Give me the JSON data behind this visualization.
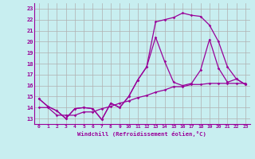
{
  "xlabel": "Windchill (Refroidissement éolien,°C)",
  "bg_color": "#c8eef0",
  "line_color": "#990099",
  "grid_color": "#b0b0b0",
  "x_ticks": [
    0,
    1,
    2,
    3,
    4,
    5,
    6,
    7,
    8,
    9,
    10,
    11,
    12,
    13,
    14,
    15,
    16,
    17,
    18,
    19,
    20,
    21,
    22,
    23
  ],
  "y_ticks": [
    13,
    14,
    15,
    16,
    17,
    18,
    19,
    20,
    21,
    22,
    23
  ],
  "ylim": [
    12.5,
    23.5
  ],
  "xlim": [
    -0.5,
    23.5
  ],
  "series": [
    [
      14.8,
      14.1,
      13.7,
      13.0,
      13.9,
      14.0,
      13.9,
      12.9,
      14.4,
      14.0,
      15.0,
      16.5,
      17.7,
      20.4,
      18.2,
      16.3,
      16.0,
      16.2,
      17.4,
      20.2,
      17.6,
      16.3,
      16.6,
      16.1
    ],
    [
      14.8,
      14.1,
      13.7,
      13.0,
      13.9,
      14.0,
      13.9,
      12.9,
      14.4,
      14.0,
      15.0,
      16.5,
      17.7,
      21.8,
      22.0,
      22.2,
      22.6,
      22.4,
      22.3,
      21.5,
      20.0,
      17.7,
      16.6,
      16.1
    ],
    [
      14.0,
      14.0,
      13.3,
      13.3,
      13.3,
      13.6,
      13.6,
      13.9,
      14.1,
      14.4,
      14.6,
      14.9,
      15.1,
      15.4,
      15.6,
      15.9,
      15.9,
      16.1,
      16.1,
      16.2,
      16.2,
      16.2,
      16.2,
      16.2
    ]
  ]
}
